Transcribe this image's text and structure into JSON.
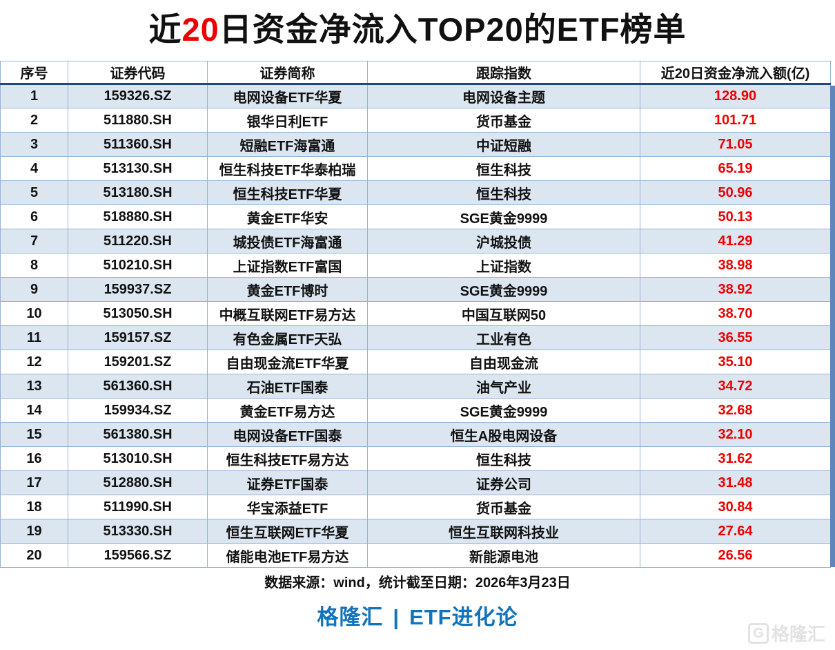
{
  "title": {
    "prefix": "近",
    "highlight": "20",
    "suffix": "日资金净流入TOP20的ETF榜单"
  },
  "footer": {
    "source_note": "数据来源：wind，统计截至日期：2026年3月23日",
    "brand_left": "格隆汇",
    "brand_separator": "|",
    "brand_right": "ETF进化论"
  },
  "watermark": {
    "icon": "G",
    "text": "格隆汇"
  },
  "colors": {
    "stripe": "#dce6f1",
    "border": "#95b3d7",
    "header_rule": "#1f497d",
    "value_red": "#ee0000",
    "brand_blue": "#1173bb",
    "watermark_grey": "#e2e2e2",
    "side_strip": "#5e86ba"
  },
  "chart_data": {
    "type": "table",
    "title": "近20日资金净流入TOP20的ETF榜单",
    "value_unit": "亿",
    "source": "数据来源：wind，统计截至日期：2026年3月23日",
    "columns": [
      "序号",
      "证券代码",
      "证券简称",
      "跟踪指数",
      "近20日资金净流入额(亿)"
    ],
    "rows": [
      {
        "rank": "1",
        "code": "159326.SZ",
        "name": "电网设备ETF华夏",
        "index": "电网设备主题",
        "inflow": "128.90"
      },
      {
        "rank": "2",
        "code": "511880.SH",
        "name": "银华日利ETF",
        "index": "货币基金",
        "inflow": "101.71"
      },
      {
        "rank": "3",
        "code": "511360.SH",
        "name": "短融ETF海富通",
        "index": "中证短融",
        "inflow": "71.05"
      },
      {
        "rank": "4",
        "code": "513130.SH",
        "name": "恒生科技ETF华泰柏瑞",
        "index": "恒生科技",
        "inflow": "65.19"
      },
      {
        "rank": "5",
        "code": "513180.SH",
        "name": "恒生科技ETF华夏",
        "index": "恒生科技",
        "inflow": "50.96"
      },
      {
        "rank": "6",
        "code": "518880.SH",
        "name": "黄金ETF华安",
        "index": "SGE黄金9999",
        "inflow": "50.13"
      },
      {
        "rank": "7",
        "code": "511220.SH",
        "name": "城投债ETF海富通",
        "index": "沪城投债",
        "inflow": "41.29"
      },
      {
        "rank": "8",
        "code": "510210.SH",
        "name": "上证指数ETF富国",
        "index": "上证指数",
        "inflow": "38.98"
      },
      {
        "rank": "9",
        "code": "159937.SZ",
        "name": "黄金ETF博时",
        "index": "SGE黄金9999",
        "inflow": "38.92"
      },
      {
        "rank": "10",
        "code": "513050.SH",
        "name": "中概互联网ETF易方达",
        "index": "中国互联网50",
        "inflow": "38.70"
      },
      {
        "rank": "11",
        "code": "159157.SZ",
        "name": "有色金属ETF天弘",
        "index": "工业有色",
        "inflow": "36.55"
      },
      {
        "rank": "12",
        "code": "159201.SZ",
        "name": "自由现金流ETF华夏",
        "index": "自由现金流",
        "inflow": "35.10"
      },
      {
        "rank": "13",
        "code": "561360.SH",
        "name": "石油ETF国泰",
        "index": "油气产业",
        "inflow": "34.72"
      },
      {
        "rank": "14",
        "code": "159934.SZ",
        "name": "黄金ETF易方达",
        "index": "SGE黄金9999",
        "inflow": "32.68"
      },
      {
        "rank": "15",
        "code": "561380.SH",
        "name": "电网设备ETF国泰",
        "index": "恒生A股电网设备",
        "inflow": "32.10"
      },
      {
        "rank": "16",
        "code": "513010.SH",
        "name": "恒生科技ETF易方达",
        "index": "恒生科技",
        "inflow": "31.62"
      },
      {
        "rank": "17",
        "code": "512880.SH",
        "name": "证券ETF国泰",
        "index": "证券公司",
        "inflow": "31.48"
      },
      {
        "rank": "18",
        "code": "511990.SH",
        "name": "华宝添益ETF",
        "index": "货币基金",
        "inflow": "30.84"
      },
      {
        "rank": "19",
        "code": "513330.SH",
        "name": "恒生互联网ETF华夏",
        "index": "恒生互联网科技业",
        "inflow": "27.64"
      },
      {
        "rank": "20",
        "code": "159566.SZ",
        "name": "储能电池ETF易方达",
        "index": "新能源电池",
        "inflow": "26.56"
      }
    ]
  }
}
